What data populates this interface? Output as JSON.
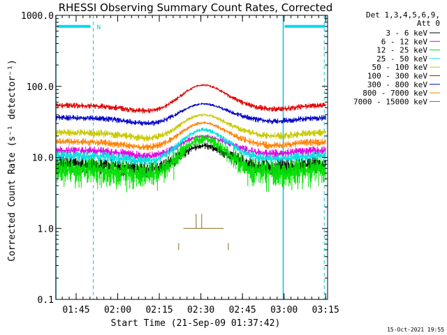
{
  "chart_data": {
    "type": "line",
    "title": "RHESSI Observing Summary Count Rates, Corrected",
    "xlabel": "Start Time (21-Sep-09 01:37:42)",
    "ylabel": "Corrected Count Rate (s⁻¹ detector⁻¹)",
    "y_scale": "log",
    "ylim": [
      0.1,
      1000
    ],
    "xlim_minutes": [
      0,
      98
    ],
    "x_tick_labels": [
      "01:45",
      "02:00",
      "02:15",
      "02:30",
      "02:45",
      "03:00",
      "03:15"
    ],
    "x_tick_minutes": [
      7.3,
      22.3,
      37.3,
      52.3,
      67.3,
      82.3,
      97.3
    ],
    "y_tick_labels": [
      "1000.0",
      "100.0",
      "10.0",
      "1.0",
      "0.1"
    ],
    "y_tick_values": [
      1000,
      100,
      10,
      1,
      0.1
    ],
    "legend_header": [
      "Det 1,3,4,5,6,9,",
      "Att 0"
    ],
    "legend_position": "right-outside",
    "shade_segments": [
      {
        "label": "",
        "start": 0,
        "end": 13.5
      },
      {
        "label": "N",
        "start": 13.5,
        "end": 13.5
      },
      {
        "label": "",
        "start": 82,
        "end": 98
      }
    ],
    "solid_marker_times": [
      0,
      82
    ],
    "dashed_marker_times": [
      13.5,
      96.8
    ],
    "series": [
      {
        "name": "3 - 6 keV",
        "color": "#000000",
        "base": 8.5,
        "peak": 15,
        "noise": 0.12,
        "dips": false
      },
      {
        "name": "6 - 12 keV",
        "color": "#e000e0",
        "base": 13,
        "peak": 20,
        "noise": 0.06,
        "dips": false
      },
      {
        "name": "12 - 25 keV",
        "color": "#00e000",
        "base": 7.5,
        "peak": 19,
        "noise": 0.18,
        "dips": true
      },
      {
        "name": "25 - 50 keV",
        "color": "#00e0e0",
        "base": 11,
        "peak": 25,
        "noise": 0.07,
        "dips": false
      },
      {
        "name": "50 - 100 keV",
        "color": "#c8c800",
        "base": 23,
        "peak": 40,
        "noise": 0.05,
        "dips": false
      },
      {
        "name": "100 - 300 keV",
        "color": "#e00000",
        "base": 55,
        "peak": 105,
        "noise": 0.04,
        "dips": false
      },
      {
        "name": "300 - 800 keV",
        "color": "#0000c8",
        "base": 37,
        "peak": 57,
        "noise": 0.04,
        "dips": false
      },
      {
        "name": "800 - 7000 keV",
        "color": "#ff8000",
        "base": 17,
        "peak": 31,
        "noise": 0.05,
        "dips": false
      },
      {
        "name": "7000 - 15000 keV",
        "color": "#8b6914",
        "base": null,
        "peak": null,
        "noise": 0,
        "dips": false
      }
    ],
    "footer_timestamp": "15-Oct-2021 19:55"
  }
}
